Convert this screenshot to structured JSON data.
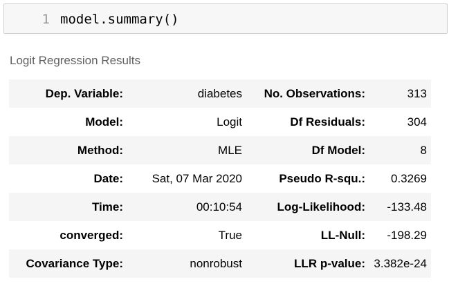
{
  "code_cell": {
    "line_number": "1",
    "code": "model.summary()"
  },
  "results": {
    "caption": "Logit Regression Results",
    "rows": [
      {
        "label_left": "Dep. Variable:",
        "value_left": "diabetes",
        "label_right": "No. Observations:",
        "value_right": "313"
      },
      {
        "label_left": "Model:",
        "value_left": "Logit",
        "label_right": "Df Residuals:",
        "value_right": "304"
      },
      {
        "label_left": "Method:",
        "value_left": "MLE",
        "label_right": "Df Model:",
        "value_right": "8"
      },
      {
        "label_left": "Date:",
        "value_left": "Sat, 07 Mar 2020",
        "label_right": "Pseudo R-squ.:",
        "value_right": "0.3269"
      },
      {
        "label_left": "Time:",
        "value_left": "00:10:54",
        "label_right": "Log-Likelihood:",
        "value_right": "-133.48"
      },
      {
        "label_left": "converged:",
        "value_left": "True",
        "label_right": "LL-Null:",
        "value_right": "-198.29"
      },
      {
        "label_left": "Covariance Type:",
        "value_left": "nonrobust",
        "label_right": "LLR p-value:",
        "value_right": "3.382e-24"
      }
    ]
  }
}
